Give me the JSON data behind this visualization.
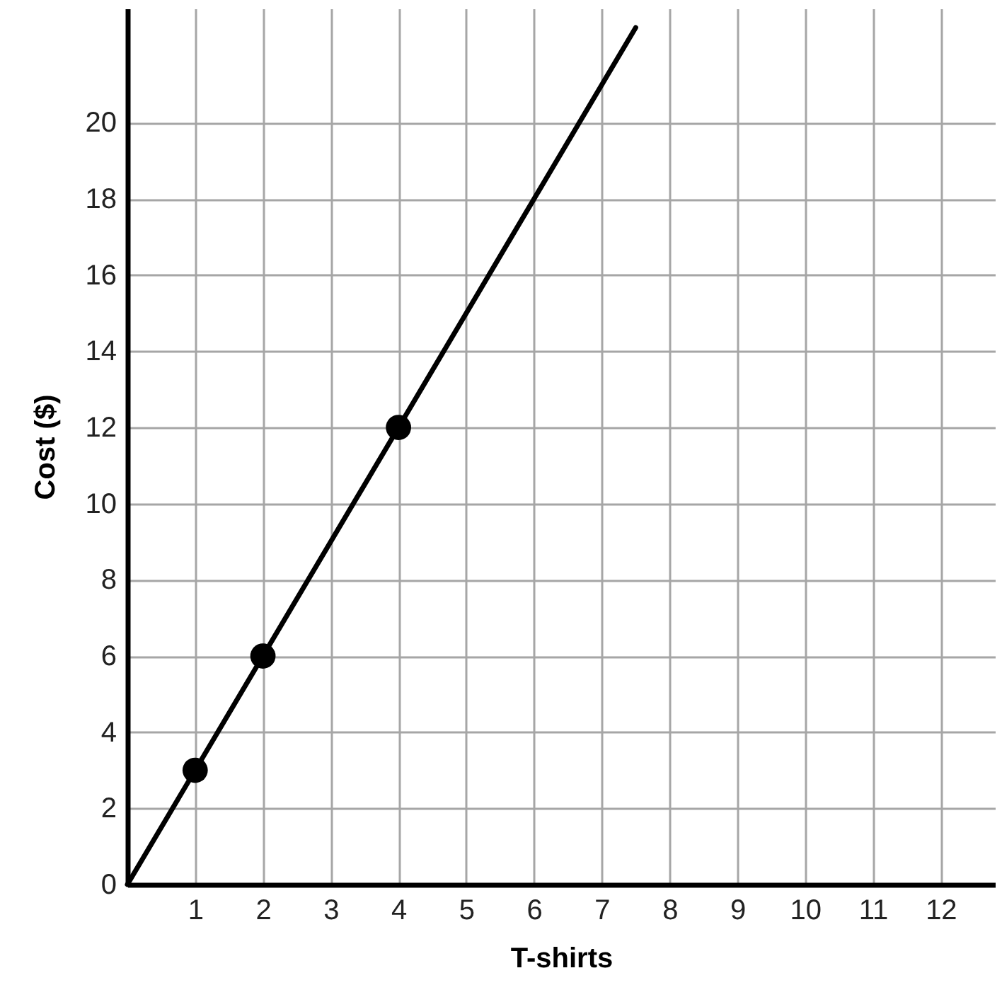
{
  "chart_data": {
    "type": "line",
    "xlabel": "T-shirts",
    "ylabel": "Cost ($)",
    "xlim": [
      0,
      12.8
    ],
    "ylim": [
      0,
      23
    ],
    "xticks": [
      1,
      2,
      3,
      4,
      5,
      6,
      7,
      8,
      9,
      10,
      11,
      12
    ],
    "yticks": [
      0,
      2,
      4,
      6,
      8,
      10,
      12,
      14,
      16,
      18,
      20
    ],
    "grid": true,
    "series": [
      {
        "color": "#000000",
        "x": [
          0,
          7.5
        ],
        "values": [
          0,
          22.5
        ]
      },
      {
        "type": "scatter",
        "color": "#000000",
        "marker": "circle",
        "x": [
          1,
          2,
          4
        ],
        "values": [
          3,
          6,
          12
        ]
      }
    ]
  }
}
